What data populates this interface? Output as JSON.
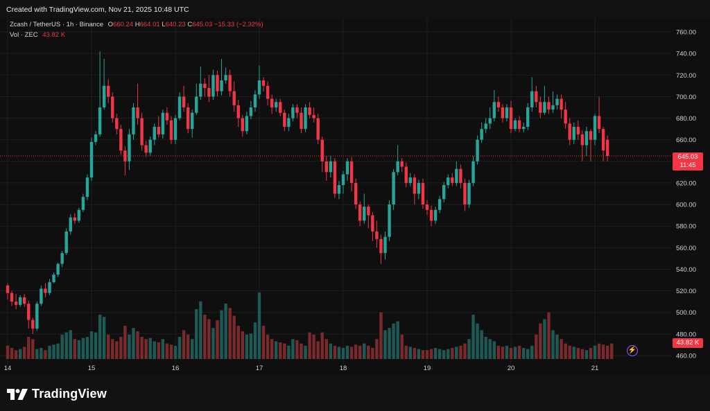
{
  "header": {
    "created_text": "Created with TradingView.com, Nov 21, 2025 10:48 UTC"
  },
  "legend": {
    "symbol_text": "Zcash / TetherUS · 1h · Binance",
    "open_key": "O",
    "open": "660.24",
    "high_key": "H",
    "high": "664.01",
    "low_key": "L",
    "low": "640.23",
    "close_key": "C",
    "close": "645.03",
    "change": "−15.33 (−2.32%)",
    "vol_label": "Vol · ZEC",
    "vol_value": "43.82 K"
  },
  "last_price": {
    "price": "645.03",
    "countdown": "11:45"
  },
  "last_volume": "43.82 K",
  "footer": {
    "brand": "TradingView"
  },
  "colors": {
    "up": "#26a69a",
    "down": "#f23645",
    "up_vol": "#1e5a55",
    "down_vol": "#7a2a2c",
    "grid": "#1f1f1f",
    "background": "#0f0f0f"
  },
  "chart_data": {
    "type": "candlestick",
    "symbol": "Zcash / TetherUS",
    "interval": "1h",
    "exchange": "Binance",
    "y_ticks": [
      760,
      740,
      720,
      700,
      680,
      660,
      640,
      620,
      600,
      580,
      560,
      540,
      520,
      500,
      480,
      460
    ],
    "ylim": [
      455,
      770
    ],
    "x_tick_labels": [
      {
        "label": "14",
        "index": 0
      },
      {
        "label": "15",
        "index": 20
      },
      {
        "label": "16",
        "index": 40
      },
      {
        "label": "17",
        "index": 60
      },
      {
        "label": "18",
        "index": 80
      },
      {
        "label": "19",
        "index": 100
      },
      {
        "label": "20",
        "index": 120
      },
      {
        "label": "21",
        "index": 140
      }
    ],
    "candles": [
      [
        525,
        518,
        527,
        512
      ],
      [
        518,
        510,
        520,
        506
      ],
      [
        510,
        507,
        517,
        503
      ],
      [
        507,
        514,
        516,
        505
      ],
      [
        514,
        508,
        517,
        505
      ],
      [
        508,
        493,
        511,
        485
      ],
      [
        493,
        485,
        495,
        480
      ],
      [
        485,
        508,
        510,
        483
      ],
      [
        508,
        522,
        525,
        506
      ],
      [
        522,
        518,
        527,
        514
      ],
      [
        518,
        528,
        531,
        516
      ],
      [
        528,
        535,
        537,
        527
      ],
      [
        535,
        545,
        546,
        533
      ],
      [
        545,
        555,
        557,
        542
      ],
      [
        555,
        575,
        578,
        553
      ],
      [
        575,
        588,
        591,
        572
      ],
      [
        588,
        585,
        592,
        582
      ],
      [
        585,
        595,
        597,
        583
      ],
      [
        595,
        607,
        610,
        593
      ],
      [
        607,
        625,
        628,
        604
      ],
      [
        625,
        658,
        662,
        622
      ],
      [
        658,
        665,
        668,
        655
      ],
      [
        665,
        690,
        742,
        663
      ],
      [
        690,
        710,
        735,
        688
      ],
      [
        710,
        700,
        716,
        694
      ],
      [
        700,
        680,
        704,
        676
      ],
      [
        680,
        670,
        684,
        665
      ],
      [
        670,
        650,
        674,
        646
      ],
      [
        650,
        640,
        654,
        627
      ],
      [
        640,
        665,
        670,
        632
      ],
      [
        665,
        690,
        694,
        660
      ],
      [
        690,
        680,
        712,
        674
      ],
      [
        680,
        655,
        685,
        650
      ],
      [
        655,
        648,
        659,
        644
      ],
      [
        648,
        660,
        663,
        645
      ],
      [
        660,
        672,
        675,
        655
      ],
      [
        672,
        665,
        682,
        662
      ],
      [
        665,
        685,
        688,
        661
      ],
      [
        685,
        678,
        690,
        674
      ],
      [
        678,
        660,
        682,
        656
      ],
      [
        660,
        680,
        683,
        656
      ],
      [
        680,
        700,
        704,
        678
      ],
      [
        700,
        690,
        710,
        686
      ],
      [
        690,
        670,
        694,
        666
      ],
      [
        670,
        685,
        688,
        662
      ],
      [
        685,
        700,
        712,
        683
      ],
      [
        700,
        712,
        728,
        697
      ],
      [
        712,
        708,
        717,
        700
      ],
      [
        708,
        700,
        720,
        695
      ],
      [
        700,
        720,
        725,
        697
      ],
      [
        720,
        705,
        724,
        700
      ],
      [
        705,
        715,
        735,
        701
      ],
      [
        715,
        720,
        727,
        712
      ],
      [
        720,
        705,
        725,
        700
      ],
      [
        705,
        692,
        714,
        686
      ],
      [
        692,
        680,
        697,
        672
      ],
      [
        680,
        668,
        683,
        663
      ],
      [
        668,
        682,
        686,
        665
      ],
      [
        682,
        690,
        696,
        679
      ],
      [
        690,
        702,
        706,
        686
      ],
      [
        702,
        715,
        729,
        698
      ],
      [
        715,
        710,
        718,
        705
      ],
      [
        710,
        698,
        714,
        692
      ],
      [
        698,
        690,
        702,
        684
      ],
      [
        690,
        695,
        698,
        686
      ],
      [
        695,
        685,
        698,
        682
      ],
      [
        685,
        672,
        688,
        668
      ],
      [
        672,
        680,
        684,
        668
      ],
      [
        680,
        690,
        693,
        677
      ],
      [
        690,
        685,
        693,
        680
      ],
      [
        685,
        670,
        690,
        666
      ],
      [
        670,
        690,
        693,
        667
      ],
      [
        690,
        683,
        695,
        680
      ],
      [
        683,
        680,
        690,
        676
      ],
      [
        680,
        660,
        684,
        656
      ],
      [
        660,
        640,
        663,
        630
      ],
      [
        640,
        630,
        645,
        622
      ],
      [
        630,
        640,
        645,
        625
      ],
      [
        640,
        610,
        643,
        606
      ],
      [
        610,
        618,
        622,
        605
      ],
      [
        618,
        628,
        631,
        610
      ],
      [
        628,
        640,
        643,
        622
      ],
      [
        640,
        620,
        644,
        612
      ],
      [
        620,
        600,
        624,
        596
      ],
      [
        600,
        585,
        603,
        580
      ],
      [
        585,
        598,
        610,
        582
      ],
      [
        598,
        590,
        600,
        578
      ],
      [
        590,
        575,
        593,
        566
      ],
      [
        575,
        568,
        585,
        560
      ],
      [
        568,
        555,
        572,
        545
      ],
      [
        555,
        570,
        575,
        549
      ],
      [
        570,
        600,
        604,
        566
      ],
      [
        600,
        630,
        633,
        595
      ],
      [
        630,
        640,
        655,
        627
      ],
      [
        640,
        635,
        643,
        630
      ],
      [
        635,
        620,
        639,
        616
      ],
      [
        620,
        625,
        629,
        617
      ],
      [
        625,
        610,
        628,
        600
      ],
      [
        610,
        620,
        623,
        605
      ],
      [
        620,
        600,
        624,
        596
      ],
      [
        600,
        595,
        604,
        590
      ],
      [
        595,
        585,
        599,
        580
      ],
      [
        585,
        595,
        598,
        582
      ],
      [
        595,
        605,
        608,
        592
      ],
      [
        605,
        618,
        621,
        602
      ],
      [
        618,
        625,
        628,
        615
      ],
      [
        625,
        620,
        629,
        617
      ],
      [
        620,
        633,
        640,
        617
      ],
      [
        633,
        620,
        637,
        615
      ],
      [
        620,
        600,
        624,
        594
      ],
      [
        600,
        620,
        623,
        597
      ],
      [
        620,
        640,
        645,
        617
      ],
      [
        640,
        660,
        664,
        637
      ],
      [
        660,
        670,
        676,
        657
      ],
      [
        670,
        675,
        680,
        666
      ],
      [
        675,
        680,
        690,
        670
      ],
      [
        680,
        695,
        706,
        677
      ],
      [
        695,
        690,
        700,
        686
      ],
      [
        690,
        680,
        693,
        676
      ],
      [
        680,
        690,
        693,
        677
      ],
      [
        690,
        670,
        696,
        666
      ],
      [
        670,
        678,
        680,
        668
      ],
      [
        678,
        670,
        682,
        667
      ],
      [
        670,
        672,
        676,
        667
      ],
      [
        672,
        690,
        694,
        669
      ],
      [
        690,
        705,
        718,
        686
      ],
      [
        705,
        695,
        710,
        690
      ],
      [
        695,
        685,
        700,
        680
      ],
      [
        685,
        695,
        710,
        683
      ],
      [
        695,
        688,
        700,
        684
      ],
      [
        688,
        692,
        705,
        685
      ],
      [
        692,
        698,
        702,
        688
      ],
      [
        698,
        688,
        702,
        680
      ],
      [
        688,
        675,
        695,
        670
      ],
      [
        675,
        660,
        680,
        655
      ],
      [
        660,
        672,
        676,
        656
      ],
      [
        672,
        665,
        678,
        660
      ],
      [
        665,
        655,
        669,
        640
      ],
      [
        655,
        668,
        672,
        645
      ],
      [
        668,
        660,
        670,
        640
      ],
      [
        660,
        682,
        684,
        655
      ],
      [
        682,
        670,
        700,
        666
      ],
      [
        670,
        650,
        672,
        640
      ],
      [
        660,
        645,
        664,
        640
      ]
    ],
    "volumes": [
      12,
      10,
      8,
      9,
      11,
      20,
      18,
      9,
      10,
      8,
      12,
      13,
      14,
      22,
      24,
      26,
      18,
      17,
      19,
      20,
      25,
      24,
      40,
      38,
      22,
      18,
      16,
      20,
      30,
      22,
      28,
      25,
      20,
      18,
      19,
      16,
      15,
      18,
      14,
      13,
      12,
      20,
      26,
      22,
      18,
      45,
      52,
      40,
      36,
      28,
      35,
      44,
      50,
      46,
      39,
      30,
      25,
      22,
      23,
      33,
      60,
      30,
      22,
      18,
      16,
      15,
      14,
      12,
      18,
      17,
      14,
      12,
      24,
      22,
      16,
      24,
      18,
      14,
      12,
      11,
      10,
      12,
      11,
      13,
      12,
      14,
      12,
      10,
      18,
      42,
      26,
      28,
      32,
      34,
      22,
      12,
      11,
      10,
      9,
      8,
      8,
      9,
      10,
      9,
      8,
      9,
      10,
      11,
      12,
      14,
      18,
      40,
      32,
      26,
      20,
      18,
      16,
      12,
      11,
      12,
      10,
      11,
      12,
      10,
      9,
      12,
      22,
      32,
      36,
      42,
      26,
      22,
      18,
      14,
      12,
      11,
      10,
      9,
      8,
      10,
      12,
      14,
      13,
      12,
      14
    ]
  }
}
